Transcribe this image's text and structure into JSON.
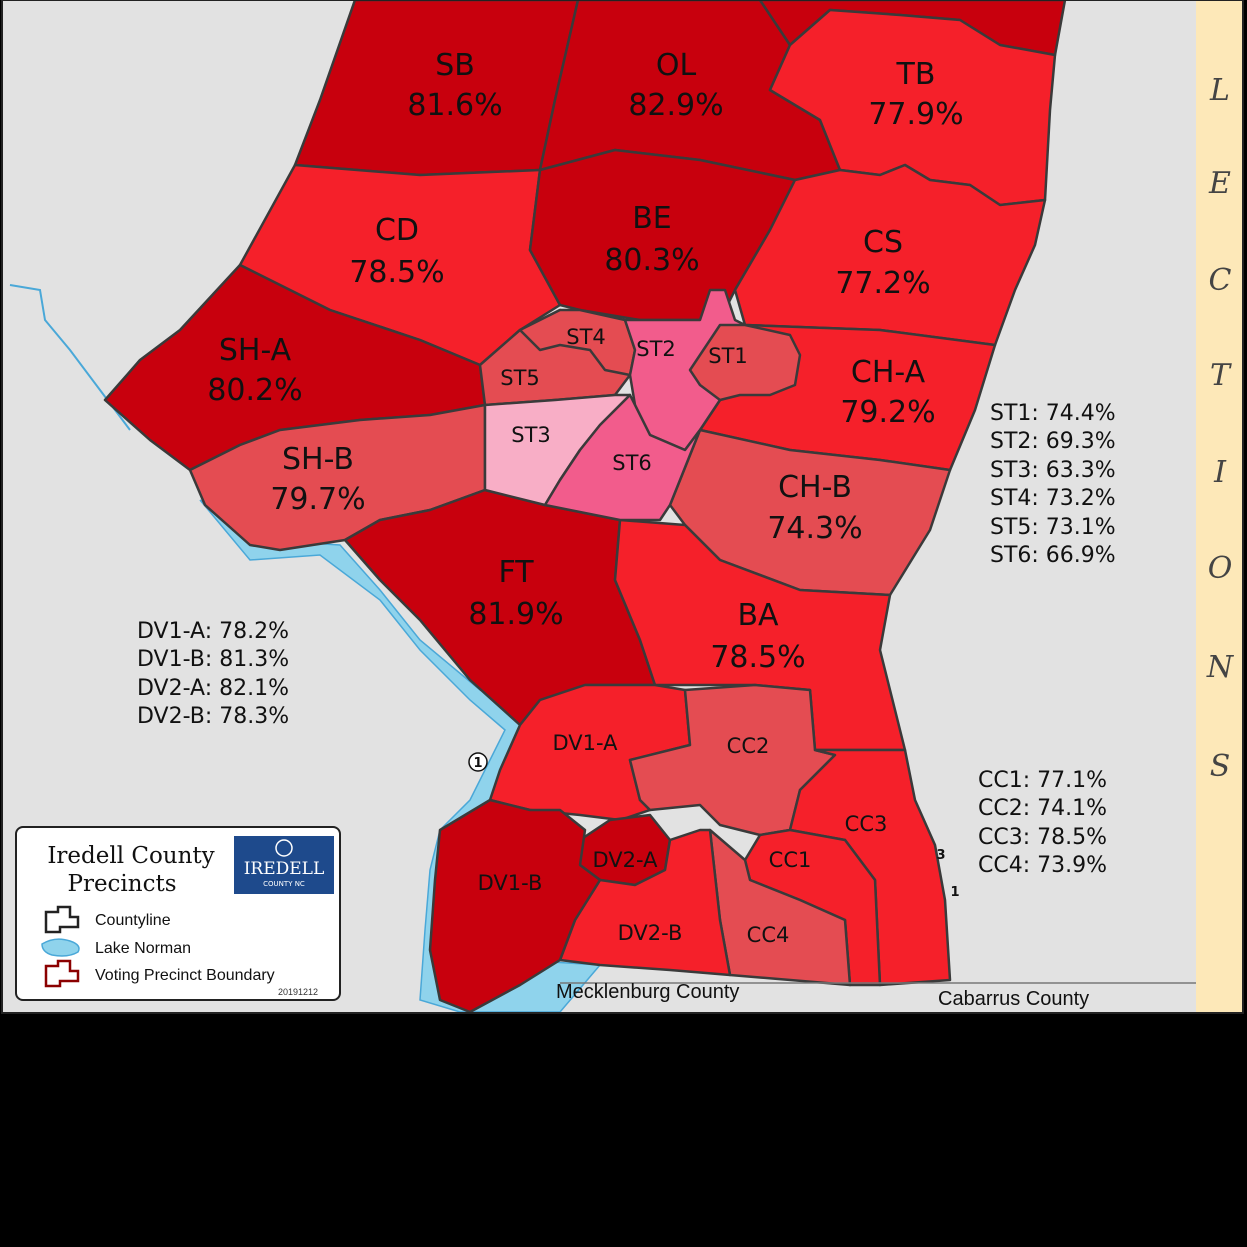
{
  "banner": {
    "letters": [
      "L",
      "E",
      "C",
      "T",
      "I",
      "O",
      "N",
      "S"
    ]
  },
  "precincts": [
    {
      "code": "SB",
      "pct": "81.6%",
      "color": "#c8000d"
    },
    {
      "code": "OL",
      "pct": "82.9%",
      "color": "#c8000d"
    },
    {
      "code": "TB",
      "pct": "77.9%",
      "color": "#f5202a"
    },
    {
      "code": "CD",
      "pct": "78.5%",
      "color": "#f5202a"
    },
    {
      "code": "BE",
      "pct": "80.3%",
      "color": "#c8000d"
    },
    {
      "code": "CS",
      "pct": "77.2%",
      "color": "#f5202a"
    },
    {
      "code": "SH-A",
      "pct": "80.2%",
      "color": "#c8000d"
    },
    {
      "code": "CH-A",
      "pct": "79.2%",
      "color": "#f5202a"
    },
    {
      "code": "SH-B",
      "pct": "79.7%",
      "color": "#e44c52"
    },
    {
      "code": "CH-B",
      "pct": "74.3%",
      "color": "#e44c52"
    },
    {
      "code": "FT",
      "pct": "81.9%",
      "color": "#c8000d"
    },
    {
      "code": "BA",
      "pct": "78.5%",
      "color": "#f5202a"
    }
  ],
  "small_precincts": [
    {
      "code": "ST1",
      "color": "#e44c52"
    },
    {
      "code": "ST2",
      "color": "#f25c8c"
    },
    {
      "code": "ST3",
      "color": "#f8aec6"
    },
    {
      "code": "ST4",
      "color": "#e44c52"
    },
    {
      "code": "ST5",
      "color": "#e44c52"
    },
    {
      "code": "ST6",
      "color": "#f25c8c"
    },
    {
      "code": "DV1-A",
      "color": "#f5202a"
    },
    {
      "code": "DV1-B",
      "color": "#c8000d"
    },
    {
      "code": "DV2-A",
      "color": "#c8000d"
    },
    {
      "code": "DV2-B",
      "color": "#f5202a"
    },
    {
      "code": "CC1",
      "color": "#f5202a"
    },
    {
      "code": "CC2",
      "color": "#e44c52"
    },
    {
      "code": "CC3",
      "color": "#f5202a"
    },
    {
      "code": "CC4",
      "color": "#e44c52"
    }
  ],
  "st_stats": [
    "ST1: 74.4%",
    "ST2: 69.3%",
    "ST3: 63.3%",
    "ST4: 73.2%",
    "ST5: 73.1%",
    "ST6: 66.9%"
  ],
  "dv_stats": [
    "DV1-A: 78.2%",
    "DV1-B: 81.3%",
    "DV2-A: 82.1%",
    "DV2-B: 78.3%"
  ],
  "cc_stats": [
    "CC1: 77.1%",
    "CC2: 74.1%",
    "CC3: 78.5%",
    "CC4: 73.9%"
  ],
  "legend": {
    "title_line1": "Iredell County",
    "title_line2": "Precincts",
    "logo_text": "IREDELL",
    "logo_sub": "COUNTY NC",
    "items": [
      "Countyline",
      "Lake Norman",
      "Voting Precinct Boundary"
    ],
    "date": "20191212"
  },
  "counties": {
    "south": "Mecklenburg County",
    "southeast": "Cabarrus County"
  },
  "markers": [
    "1",
    "3",
    "1"
  ],
  "colors": {
    "background": "#e2e2e2",
    "lake": "#8fd3ec",
    "banner": "#fde8b8",
    "boundary": "#3a3a3a"
  }
}
